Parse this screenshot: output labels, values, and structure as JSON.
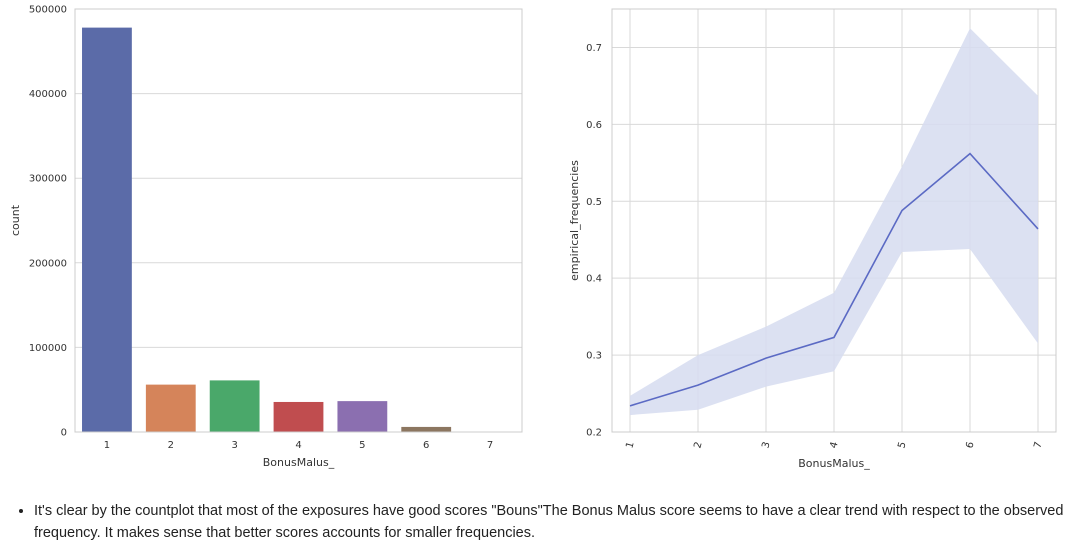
{
  "chart_data": [
    {
      "type": "bar",
      "xlabel": "BonusMalus_",
      "ylabel": "count",
      "categories": [
        "1",
        "2",
        "3",
        "4",
        "5",
        "6",
        "7"
      ],
      "values": [
        478000,
        56000,
        61000,
        35500,
        36500,
        6000,
        200
      ],
      "ylim": [
        0,
        500000
      ],
      "yticks": [
        0,
        100000,
        200000,
        300000,
        400000,
        500000
      ],
      "grid": true,
      "colors": [
        "#5b6ba8",
        "#d5845a",
        "#4aa86a",
        "#c04d4f",
        "#8b6fb0",
        "#8c7660",
        "#d48ec0"
      ]
    },
    {
      "type": "line",
      "xlabel": "BonusMalus_",
      "ylabel": "empirical_frequencies",
      "categories": [
        "1",
        "2",
        "3",
        "4",
        "5",
        "6",
        "7"
      ],
      "values": [
        0.234,
        0.261,
        0.296,
        0.323,
        0.488,
        0.562,
        0.464
      ],
      "ci_lower": [
        0.222,
        0.229,
        0.259,
        0.279,
        0.434,
        0.438,
        0.315
      ],
      "ci_upper": [
        0.247,
        0.3,
        0.337,
        0.381,
        0.545,
        0.725,
        0.637
      ],
      "ylim": [
        0.2,
        0.75
      ],
      "yticks": [
        0.2,
        0.3,
        0.4,
        0.5,
        0.6,
        0.7
      ],
      "grid": true,
      "line_color": "#5b6ac4",
      "band_color": "#d6dcf0"
    }
  ],
  "notes": [
    "It's clear by the countplot that most of the exposures have good scores \"Bouns\"The Bonus Malus score seems to have a clear trend with respect to the observed frequency. It makes sense that better scores accounts for smaller frequencies."
  ]
}
